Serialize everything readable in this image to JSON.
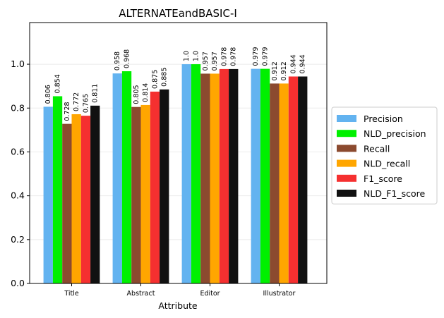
{
  "chart_data": {
    "type": "bar",
    "title": "ALTERNATEandBASIC-I",
    "xlabel": "Attribute",
    "ylabel": "",
    "categories": [
      "Title",
      "Abstract",
      "Editor",
      "Illustrator"
    ],
    "ylim": [
      0,
      1.19
    ],
    "yticks": [
      "0.0",
      "0.2",
      "0.4",
      "0.6",
      "0.8",
      "1.0"
    ],
    "grid": true,
    "legend_position": "center-right-outside",
    "series": [
      {
        "name": "Precision",
        "color": "#63b3f0",
        "values": [
          0.806,
          0.958,
          1.0,
          0.979
        ],
        "labels": [
          "0.806",
          "0.958",
          "1.0",
          "0.979"
        ]
      },
      {
        "name": "NLD_precision",
        "color": "#00f000",
        "values": [
          0.854,
          0.968,
          1.0,
          0.979
        ],
        "labels": [
          "0.854",
          "0.968",
          "1.0",
          "0.979"
        ]
      },
      {
        "name": "Recall",
        "color": "#8b4a2f",
        "values": [
          0.728,
          0.805,
          0.957,
          0.912
        ],
        "labels": [
          "0.728",
          "0.805",
          "0.957",
          "0.912"
        ]
      },
      {
        "name": "NLD_recall",
        "color": "#ffa600",
        "values": [
          0.772,
          0.814,
          0.957,
          0.912
        ],
        "labels": [
          "0.772",
          "0.814",
          "0.957",
          "0.912"
        ]
      },
      {
        "name": "F1_score",
        "color": "#f53030",
        "values": [
          0.765,
          0.875,
          0.978,
          0.944
        ],
        "labels": [
          "0.765",
          "0.875",
          "0.978",
          "0.944"
        ]
      },
      {
        "name": "NLD_F1_score",
        "color": "#111111",
        "values": [
          0.811,
          0.885,
          0.978,
          0.944
        ],
        "labels": [
          "0.811",
          "0.885",
          "0.978",
          "0.944"
        ]
      }
    ]
  }
}
